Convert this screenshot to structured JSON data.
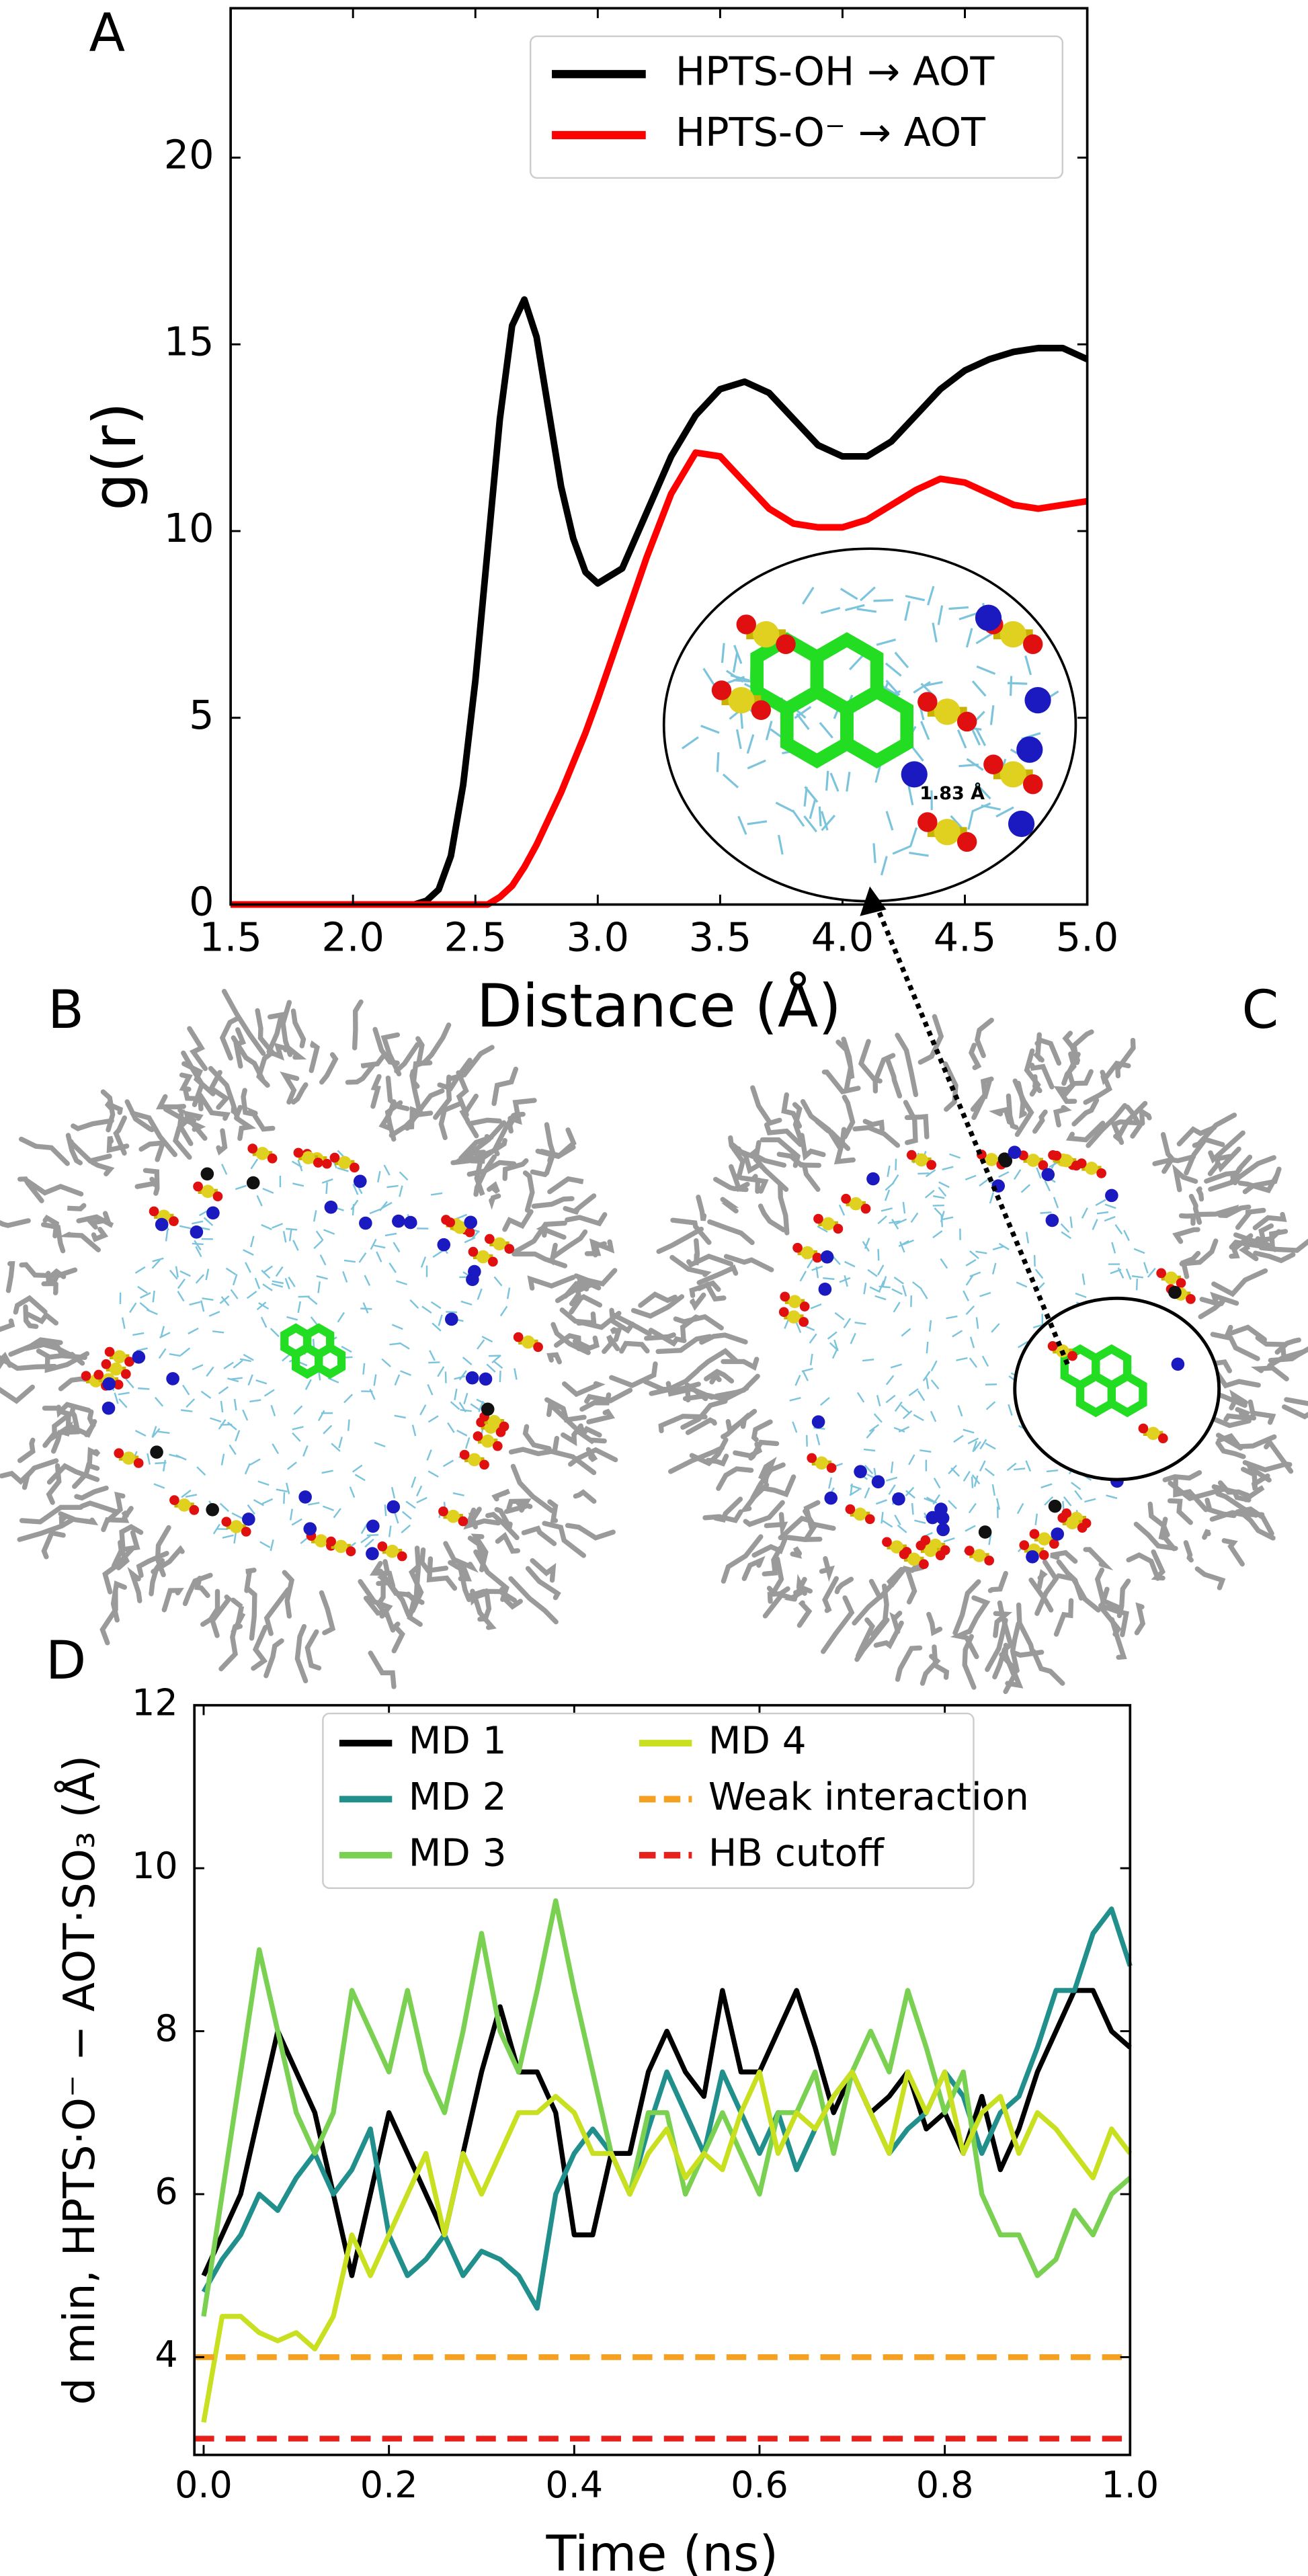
{
  "chart_data": [
    {
      "type": "line",
      "panel": "A",
      "x_label": "Distance (Å)",
      "y_label": "g(r)",
      "x": [
        1.5,
        1.6,
        1.7,
        1.8,
        1.9,
        2.0,
        2.1,
        2.2,
        2.25,
        2.3,
        2.35,
        2.4,
        2.45,
        2.5,
        2.55,
        2.6,
        2.65,
        2.7,
        2.75,
        2.8,
        2.85,
        2.9,
        2.95,
        3.0,
        3.1,
        3.2,
        3.3,
        3.4,
        3.5,
        3.6,
        3.7,
        3.8,
        3.9,
        4.0,
        4.1,
        4.2,
        4.3,
        4.4,
        4.5,
        4.6,
        4.7,
        4.8,
        4.9,
        5.0
      ],
      "series": [
        {
          "name": "HPTS-OH → AOT",
          "color": "#000000",
          "values": [
            0,
            0,
            0,
            0,
            0,
            0,
            0,
            0,
            0,
            0.1,
            0.4,
            1.3,
            3.2,
            6.0,
            9.5,
            13.0,
            15.5,
            16.2,
            15.2,
            13.2,
            11.2,
            9.8,
            8.9,
            8.6,
            9.0,
            10.5,
            12.0,
            13.1,
            13.8,
            14.0,
            13.7,
            13.0,
            12.3,
            12.0,
            12.0,
            12.4,
            13.1,
            13.8,
            14.3,
            14.6,
            14.8,
            14.9,
            14.9,
            14.6
          ]
        },
        {
          "name": "HPTS-O⁻ → AOT",
          "color": "#ff0000",
          "values": [
            0,
            0,
            0,
            0,
            0,
            0,
            0,
            0,
            0,
            0,
            0,
            0,
            0,
            0,
            0,
            0.2,
            0.5,
            1.0,
            1.6,
            2.3,
            3.0,
            3.8,
            4.6,
            5.5,
            7.4,
            9.3,
            11.0,
            12.1,
            12.0,
            11.3,
            10.6,
            10.2,
            10.1,
            10.1,
            10.3,
            10.7,
            11.1,
            11.4,
            11.3,
            11.0,
            10.7,
            10.6,
            10.7,
            10.8
          ]
        }
      ],
      "xlim": [
        1.5,
        5.0
      ],
      "ylim": [
        0,
        24
      ],
      "xticks": [
        1.5,
        {
          "value": 2,
          "label": "2.0"
        },
        2.5,
        {
          "value": 3,
          "label": "3.0"
        },
        3.5,
        {
          "value": 4,
          "label": "4.0"
        },
        4.5,
        {
          "value": 5,
          "label": "5.0"
        }
      ],
      "yticks": [
        0,
        5,
        10,
        15,
        20
      ],
      "legend": "upper right",
      "inset_annotation": "1.83 Å"
    },
    {
      "type": "line",
      "panel": "D",
      "x_label": "Time (ns)",
      "y_label": "d min, HPTS·O⁻ − AOT·SO₃ (Å)",
      "x": [
        0,
        0.02,
        0.04,
        0.06,
        0.08,
        0.1,
        0.12,
        0.14,
        0.16,
        0.18,
        0.2,
        0.22,
        0.24,
        0.26,
        0.28,
        0.3,
        0.32,
        0.34,
        0.36,
        0.38,
        0.4,
        0.42,
        0.44,
        0.46,
        0.48,
        0.5,
        0.52,
        0.54,
        0.56,
        0.58,
        0.6,
        0.62,
        0.64,
        0.66,
        0.68,
        0.7,
        0.72,
        0.74,
        0.76,
        0.78,
        0.8,
        0.82,
        0.84,
        0.86,
        0.88,
        0.9,
        0.92,
        0.94,
        0.96,
        0.98,
        1.0
      ],
      "series": [
        {
          "name": "MD 1",
          "color": "#000000",
          "values": [
            5,
            5.5,
            6,
            7,
            8,
            7.5,
            7,
            6,
            5,
            6,
            7,
            6.5,
            6,
            5.5,
            6.5,
            7.5,
            8.3,
            7.5,
            7.5,
            7,
            5.5,
            5.5,
            6.5,
            6.5,
            7.5,
            8,
            7.5,
            7.2,
            8.5,
            7.5,
            7.5,
            8,
            8.5,
            7.8,
            7,
            7.5,
            7,
            7.2,
            7.5,
            6.8,
            7,
            6.5,
            7.2,
            6.3,
            6.8,
            7.5,
            8,
            8.5,
            8.5,
            8,
            7.8
          ]
        },
        {
          "name": "MD 2",
          "color": "#21908d",
          "values": [
            4.8,
            5.2,
            5.5,
            6,
            5.8,
            6.2,
            6.5,
            6,
            6.3,
            6.8,
            5.5,
            5,
            5.2,
            5.5,
            5,
            5.3,
            5.2,
            5,
            4.6,
            6,
            6.5,
            6.8,
            6.5,
            6,
            6.8,
            7.5,
            7,
            6.5,
            7.5,
            7,
            6.5,
            7,
            6.3,
            6.8,
            7.2,
            7.5,
            7,
            6.5,
            6.8,
            7,
            7.5,
            7.2,
            6.5,
            7,
            7.2,
            7.8,
            8.5,
            8.5,
            9.2,
            9.5,
            8.8
          ]
        },
        {
          "name": "MD 3",
          "color": "#7ad151",
          "values": [
            4.5,
            6,
            7.5,
            9,
            8,
            7,
            6.5,
            7,
            8.5,
            8,
            7.5,
            8.5,
            7.5,
            7,
            8,
            9.2,
            8,
            7.5,
            8.5,
            9.6,
            8.5,
            7.5,
            6.5,
            6,
            7,
            7,
            6,
            6.5,
            7,
            6.5,
            6,
            7,
            7,
            7.5,
            6.5,
            7.5,
            8,
            7.5,
            8.5,
            7.8,
            7,
            7.5,
            6,
            5.5,
            5.5,
            5,
            5.2,
            5.8,
            5.5,
            6,
            6.2
          ]
        },
        {
          "name": "MD 4",
          "color": "#c8e020",
          "values": [
            3.2,
            4.5,
            4.5,
            4.3,
            4.2,
            4.3,
            4.1,
            4.5,
            5.5,
            5,
            5.5,
            6,
            6.5,
            5.5,
            6.5,
            6,
            6.5,
            7,
            7,
            7.2,
            7,
            6.5,
            6.5,
            6,
            6.5,
            6.8,
            6.2,
            6.5,
            6.3,
            7,
            7.5,
            6.5,
            7,
            6.8,
            7.2,
            7.5,
            7,
            6.5,
            7.5,
            7,
            7.5,
            6.5,
            7,
            7.2,
            6.5,
            7,
            6.8,
            6.5,
            6.2,
            6.8,
            6.5
          ]
        }
      ],
      "reference_lines": [
        {
          "name": "Weak interaction",
          "color": "#f5a020",
          "value": 4
        },
        {
          "name": "HB cutoff",
          "color": "#e8201c",
          "value": 3
        }
      ],
      "xlim": [
        -0.01,
        1.0
      ],
      "ylim": [
        2.8,
        12
      ],
      "xticks": [
        {
          "value": 0,
          "label": "0.0"
        },
        0.2,
        0.4,
        0.6,
        0.8,
        {
          "value": 1,
          "label": "1.0"
        }
      ],
      "yticks": [
        4,
        6,
        8,
        10,
        12
      ],
      "legend": "upper center"
    }
  ],
  "images": [
    {
      "panel": "B"
    },
    {
      "panel": "C"
    }
  ]
}
